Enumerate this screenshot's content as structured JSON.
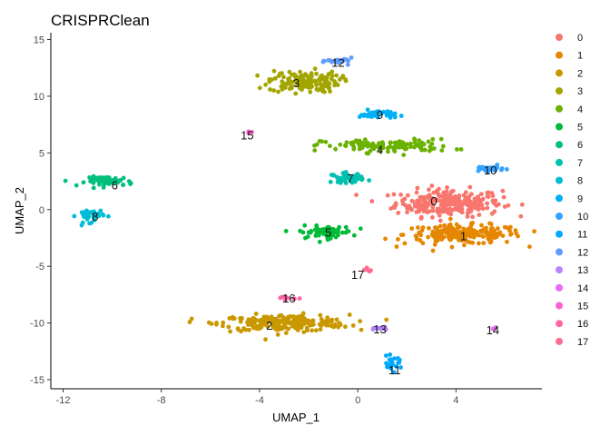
{
  "chart_data": {
    "type": "scatter",
    "title": "CRISPRClean",
    "xlabel": "UMAP_1",
    "ylabel": "UMAP_2",
    "xlim": [
      -12.5,
      7.5
    ],
    "ylim": [
      -15.8,
      15.6
    ],
    "xticks": [
      -12,
      -8,
      -4,
      0,
      4
    ],
    "yticks": [
      -15,
      -10,
      -5,
      0,
      5,
      10,
      15
    ],
    "grid": false,
    "legend_position": "right",
    "clusters": [
      {
        "name": "0",
        "color": "#F8766D",
        "label_x": 3.1,
        "label_y": 0.8,
        "cx": 3.7,
        "cy": 0.6,
        "sx": 1.8,
        "sy": 1.0,
        "n": 260
      },
      {
        "name": "1",
        "color": "#E58700",
        "label_x": 4.3,
        "label_y": -2.3,
        "cx": 4.3,
        "cy": -2.2,
        "sx": 2.0,
        "sy": 0.7,
        "n": 200
      },
      {
        "name": "2",
        "color": "#C99800",
        "label_x": -3.6,
        "label_y": -10.2,
        "cx": -3.0,
        "cy": -10.0,
        "sx": 2.2,
        "sy": 0.6,
        "n": 230
      },
      {
        "name": "3",
        "color": "#A3A500",
        "label_x": -2.5,
        "label_y": 11.2,
        "cx": -2.2,
        "cy": 11.3,
        "sx": 1.2,
        "sy": 0.8,
        "n": 140
      },
      {
        "name": "4",
        "color": "#6BB100",
        "label_x": 0.9,
        "label_y": 5.3,
        "cx": 1.2,
        "cy": 5.6,
        "sx": 2.2,
        "sy": 0.5,
        "n": 120
      },
      {
        "name": "5",
        "color": "#00BA38",
        "label_x": -1.2,
        "label_y": -2.0,
        "cx": -1.3,
        "cy": -2.0,
        "sx": 0.9,
        "sy": 0.45,
        "n": 70
      },
      {
        "name": "6",
        "color": "#00BF7D",
        "label_x": -9.9,
        "label_y": 2.2,
        "cx": -10.1,
        "cy": 2.5,
        "sx": 0.8,
        "sy": 0.35,
        "n": 60
      },
      {
        "name": "7",
        "color": "#00C0AF",
        "label_x": -0.3,
        "label_y": 2.8,
        "cx": -0.4,
        "cy": 2.8,
        "sx": 0.55,
        "sy": 0.35,
        "n": 50
      },
      {
        "name": "8",
        "color": "#00BCD8",
        "label_x": -10.7,
        "label_y": -0.6,
        "cx": -10.9,
        "cy": -0.5,
        "sx": 0.45,
        "sy": 0.5,
        "n": 40
      },
      {
        "name": "9",
        "color": "#00B0F6",
        "label_x": 0.9,
        "label_y": 8.4,
        "cx": 0.8,
        "cy": 8.4,
        "sx": 0.6,
        "sy": 0.3,
        "n": 40
      },
      {
        "name": "10",
        "color": "#35A2FF",
        "label_x": 5.4,
        "label_y": 3.5,
        "cx": 5.3,
        "cy": 3.6,
        "sx": 0.55,
        "sy": 0.22,
        "n": 30
      },
      {
        "name": "11",
        "color": "#00A9FF",
        "label_x": 1.5,
        "label_y": -14.1,
        "cx": 1.4,
        "cy": -13.6,
        "sx": 0.35,
        "sy": 0.5,
        "n": 25
      },
      {
        "name": "12",
        "color": "#619CFF",
        "label_x": -0.8,
        "label_y": 13.0,
        "cx": -0.7,
        "cy": 13.1,
        "sx": 0.45,
        "sy": 0.22,
        "n": 25
      },
      {
        "name": "13",
        "color": "#B983FF",
        "label_x": 0.9,
        "label_y": -10.5,
        "cx": 0.9,
        "cy": -10.5,
        "sx": 0.4,
        "sy": 0.08,
        "n": 14
      },
      {
        "name": "14",
        "color": "#E76BF3",
        "label_x": 5.5,
        "label_y": -10.6,
        "cx": 5.5,
        "cy": -10.5,
        "sx": 0.12,
        "sy": 0.1,
        "n": 6
      },
      {
        "name": "15",
        "color": "#FD61D1",
        "label_x": -4.5,
        "label_y": 6.6,
        "cx": -4.4,
        "cy": 6.8,
        "sx": 0.15,
        "sy": 0.1,
        "n": 6
      },
      {
        "name": "16",
        "color": "#FF67A4",
        "label_x": -2.8,
        "label_y": -7.8,
        "cx": -2.9,
        "cy": -7.8,
        "sx": 0.3,
        "sy": 0.15,
        "n": 10
      },
      {
        "name": "17",
        "color": "#FF6C91",
        "label_x": 0.0,
        "label_y": -5.7,
        "cx": 0.4,
        "cy": -5.3,
        "sx": 0.2,
        "sy": 0.3,
        "n": 6
      }
    ]
  }
}
